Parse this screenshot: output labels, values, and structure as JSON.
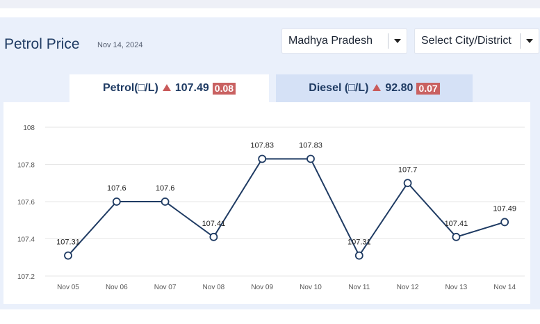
{
  "header": {
    "title": "Petrol Price",
    "date": "Nov 14, 2024"
  },
  "filters": {
    "state": "Madhya Pradesh",
    "city": "Select City/District"
  },
  "tabs": {
    "petrol": {
      "label": "Petrol(□/L)",
      "price": "107.49",
      "change": "0.08"
    },
    "diesel": {
      "label": "Diesel (□/L)",
      "price": "92.80",
      "change": "0.07"
    }
  },
  "colors": {
    "accent": "#1f3b63",
    "increase": "#c96161",
    "line": "#1f3b63"
  },
  "icons": {
    "increase": "triangle-up-icon",
    "dropdown": "chevron-down-icon"
  },
  "chart_data": {
    "type": "line",
    "categories": [
      "Nov 05",
      "Nov 06",
      "Nov 07",
      "Nov 08",
      "Nov 09",
      "Nov 10",
      "Nov 11",
      "Nov 12",
      "Nov 13",
      "Nov 14"
    ],
    "values": [
      107.31,
      107.6,
      107.6,
      107.41,
      107.83,
      107.83,
      107.31,
      107.7,
      107.41,
      107.49
    ],
    "data_labels": [
      "107.31",
      "107.6",
      "107.6",
      "107.41",
      "107.83",
      "107.83",
      "107.31",
      "107.7",
      "107.41",
      "107.49"
    ],
    "yticks": [
      "107.2",
      "107.4",
      "107.6",
      "107.8",
      "108"
    ],
    "ylim": [
      107.2,
      108
    ],
    "grid": true
  }
}
